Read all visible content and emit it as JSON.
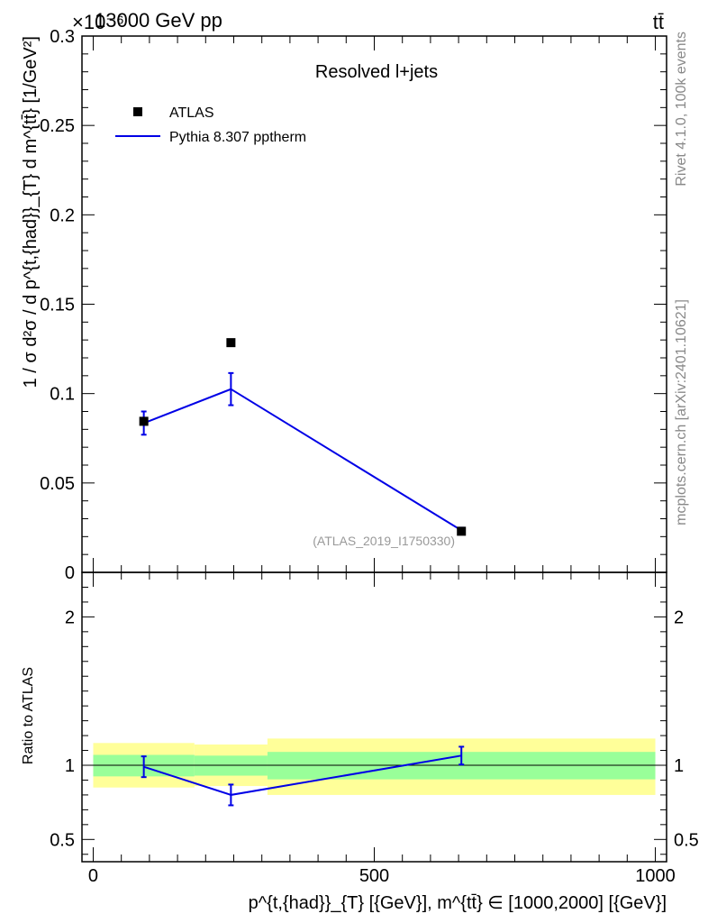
{
  "header": {
    "energy_label": "13000 GeV pp",
    "process_label": "tt̄",
    "exponent_label": "×10⁻⁶"
  },
  "side_labels": {
    "rivet": "Rivet 4.1.0,  100k events",
    "mcplots": "mcplots.cern.ch [arXiv:2401.10621]"
  },
  "chart_data": [
    {
      "type": "scatter",
      "panel": "main",
      "title": "Resolved l+jets",
      "analysis_label": "(ATLAS_2019_I1750330)",
      "ylabel": "1 / σ d²σ / d p^{t,{had}}_{T} d m^{tt̄} [1/GeV²]",
      "ylim": [
        0,
        0.3
      ],
      "yticks": [
        0,
        0.05,
        0.1,
        0.15,
        0.2,
        0.25,
        0.3
      ],
      "ytick_labels": [
        "0",
        "0.05",
        "0.1",
        "0.15",
        "0.2",
        "0.25",
        "0.3"
      ],
      "xlim": [
        -20,
        1020
      ],
      "legend_position": "top-left",
      "series": [
        {
          "name": "ATLAS",
          "style": "marker",
          "color": "#000000",
          "x": [
            90,
            245,
            655
          ],
          "y": [
            0.0845,
            0.1285,
            0.023
          ]
        },
        {
          "name": "Pythia 8.307 pptherm",
          "style": "line",
          "color": "#0000e6",
          "x": [
            90,
            245,
            655
          ],
          "y": [
            0.0835,
            0.1025,
            0.0235
          ],
          "yerr": [
            0.0065,
            0.009,
            0.0015
          ]
        }
      ]
    },
    {
      "type": "line",
      "panel": "ratio",
      "ylabel": "Ratio to ATLAS",
      "ylim": [
        0.35,
        2.3
      ],
      "yticks": [
        0.5,
        1,
        2
      ],
      "ytick_labels": [
        "0.5",
        "1",
        "2"
      ],
      "xlim": [
        -20,
        1020
      ],
      "xticks": [
        0,
        500,
        1000
      ],
      "xtick_labels": [
        "0",
        "500",
        "1000"
      ],
      "xlabel": "p^{t,{had}}_{T} [{GeV}], m^{tt̄} ∈ [1000,2000] [{GeV}]",
      "bins": [
        {
          "x_low": 0,
          "x_high": 180,
          "stat_low": 0.925,
          "stat_high": 1.07,
          "tot_low": 0.85,
          "tot_high": 1.15
        },
        {
          "x_low": 180,
          "x_high": 310,
          "stat_low": 0.93,
          "stat_high": 1.065,
          "tot_low": 0.86,
          "tot_high": 1.14
        },
        {
          "x_low": 310,
          "x_high": 1000,
          "stat_low": 0.905,
          "stat_high": 1.09,
          "tot_low": 0.8,
          "tot_high": 1.18
        }
      ],
      "series": [
        {
          "name": "Pythia 8.307 pptherm / ATLAS",
          "color": "#0000e6",
          "x": [
            90,
            245,
            655
          ],
          "y": [
            0.99,
            0.8,
            1.065
          ],
          "yerr": [
            0.07,
            0.07,
            0.06
          ]
        }
      ]
    }
  ]
}
